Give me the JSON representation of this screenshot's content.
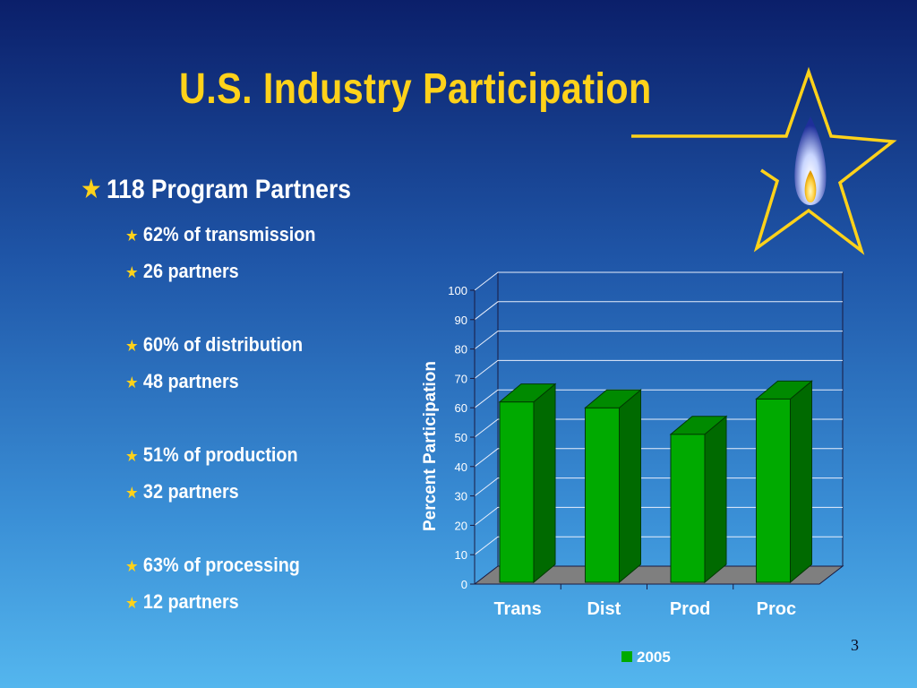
{
  "slide": {
    "title": "U.S. Industry Participation",
    "page_number": "3"
  },
  "bullets": {
    "main": "118 Program Partners",
    "items": [
      "62% of transmission",
      "26 partners",
      "60% of distribution",
      "48 partners",
      "51% of production",
      "32 partners",
      "63% of processing",
      "12 partners"
    ],
    "bullet_glyph": "★"
  },
  "logo": {
    "icon": "star-flame-icon"
  },
  "colors": {
    "title": "#ffd21a",
    "bar_front": "#00aa00",
    "bar_side": "#006a00",
    "bar_top": "#008a00",
    "floor": "#7f7f7f"
  },
  "chart_data": {
    "type": "bar",
    "categories": [
      "Trans",
      "Dist",
      "Prod",
      "Proc"
    ],
    "series": [
      {
        "name": "2005",
        "values": [
          62,
          60,
          51,
          63
        ]
      }
    ],
    "ylabel": "Percent Participation",
    "xlabel": "",
    "ylim": [
      0,
      100
    ],
    "yticks": [
      "0",
      "10",
      "20",
      "30",
      "40",
      "50",
      "60",
      "70",
      "80",
      "90",
      "100"
    ],
    "grid": true,
    "legend": "bottom",
    "style": "3d"
  }
}
